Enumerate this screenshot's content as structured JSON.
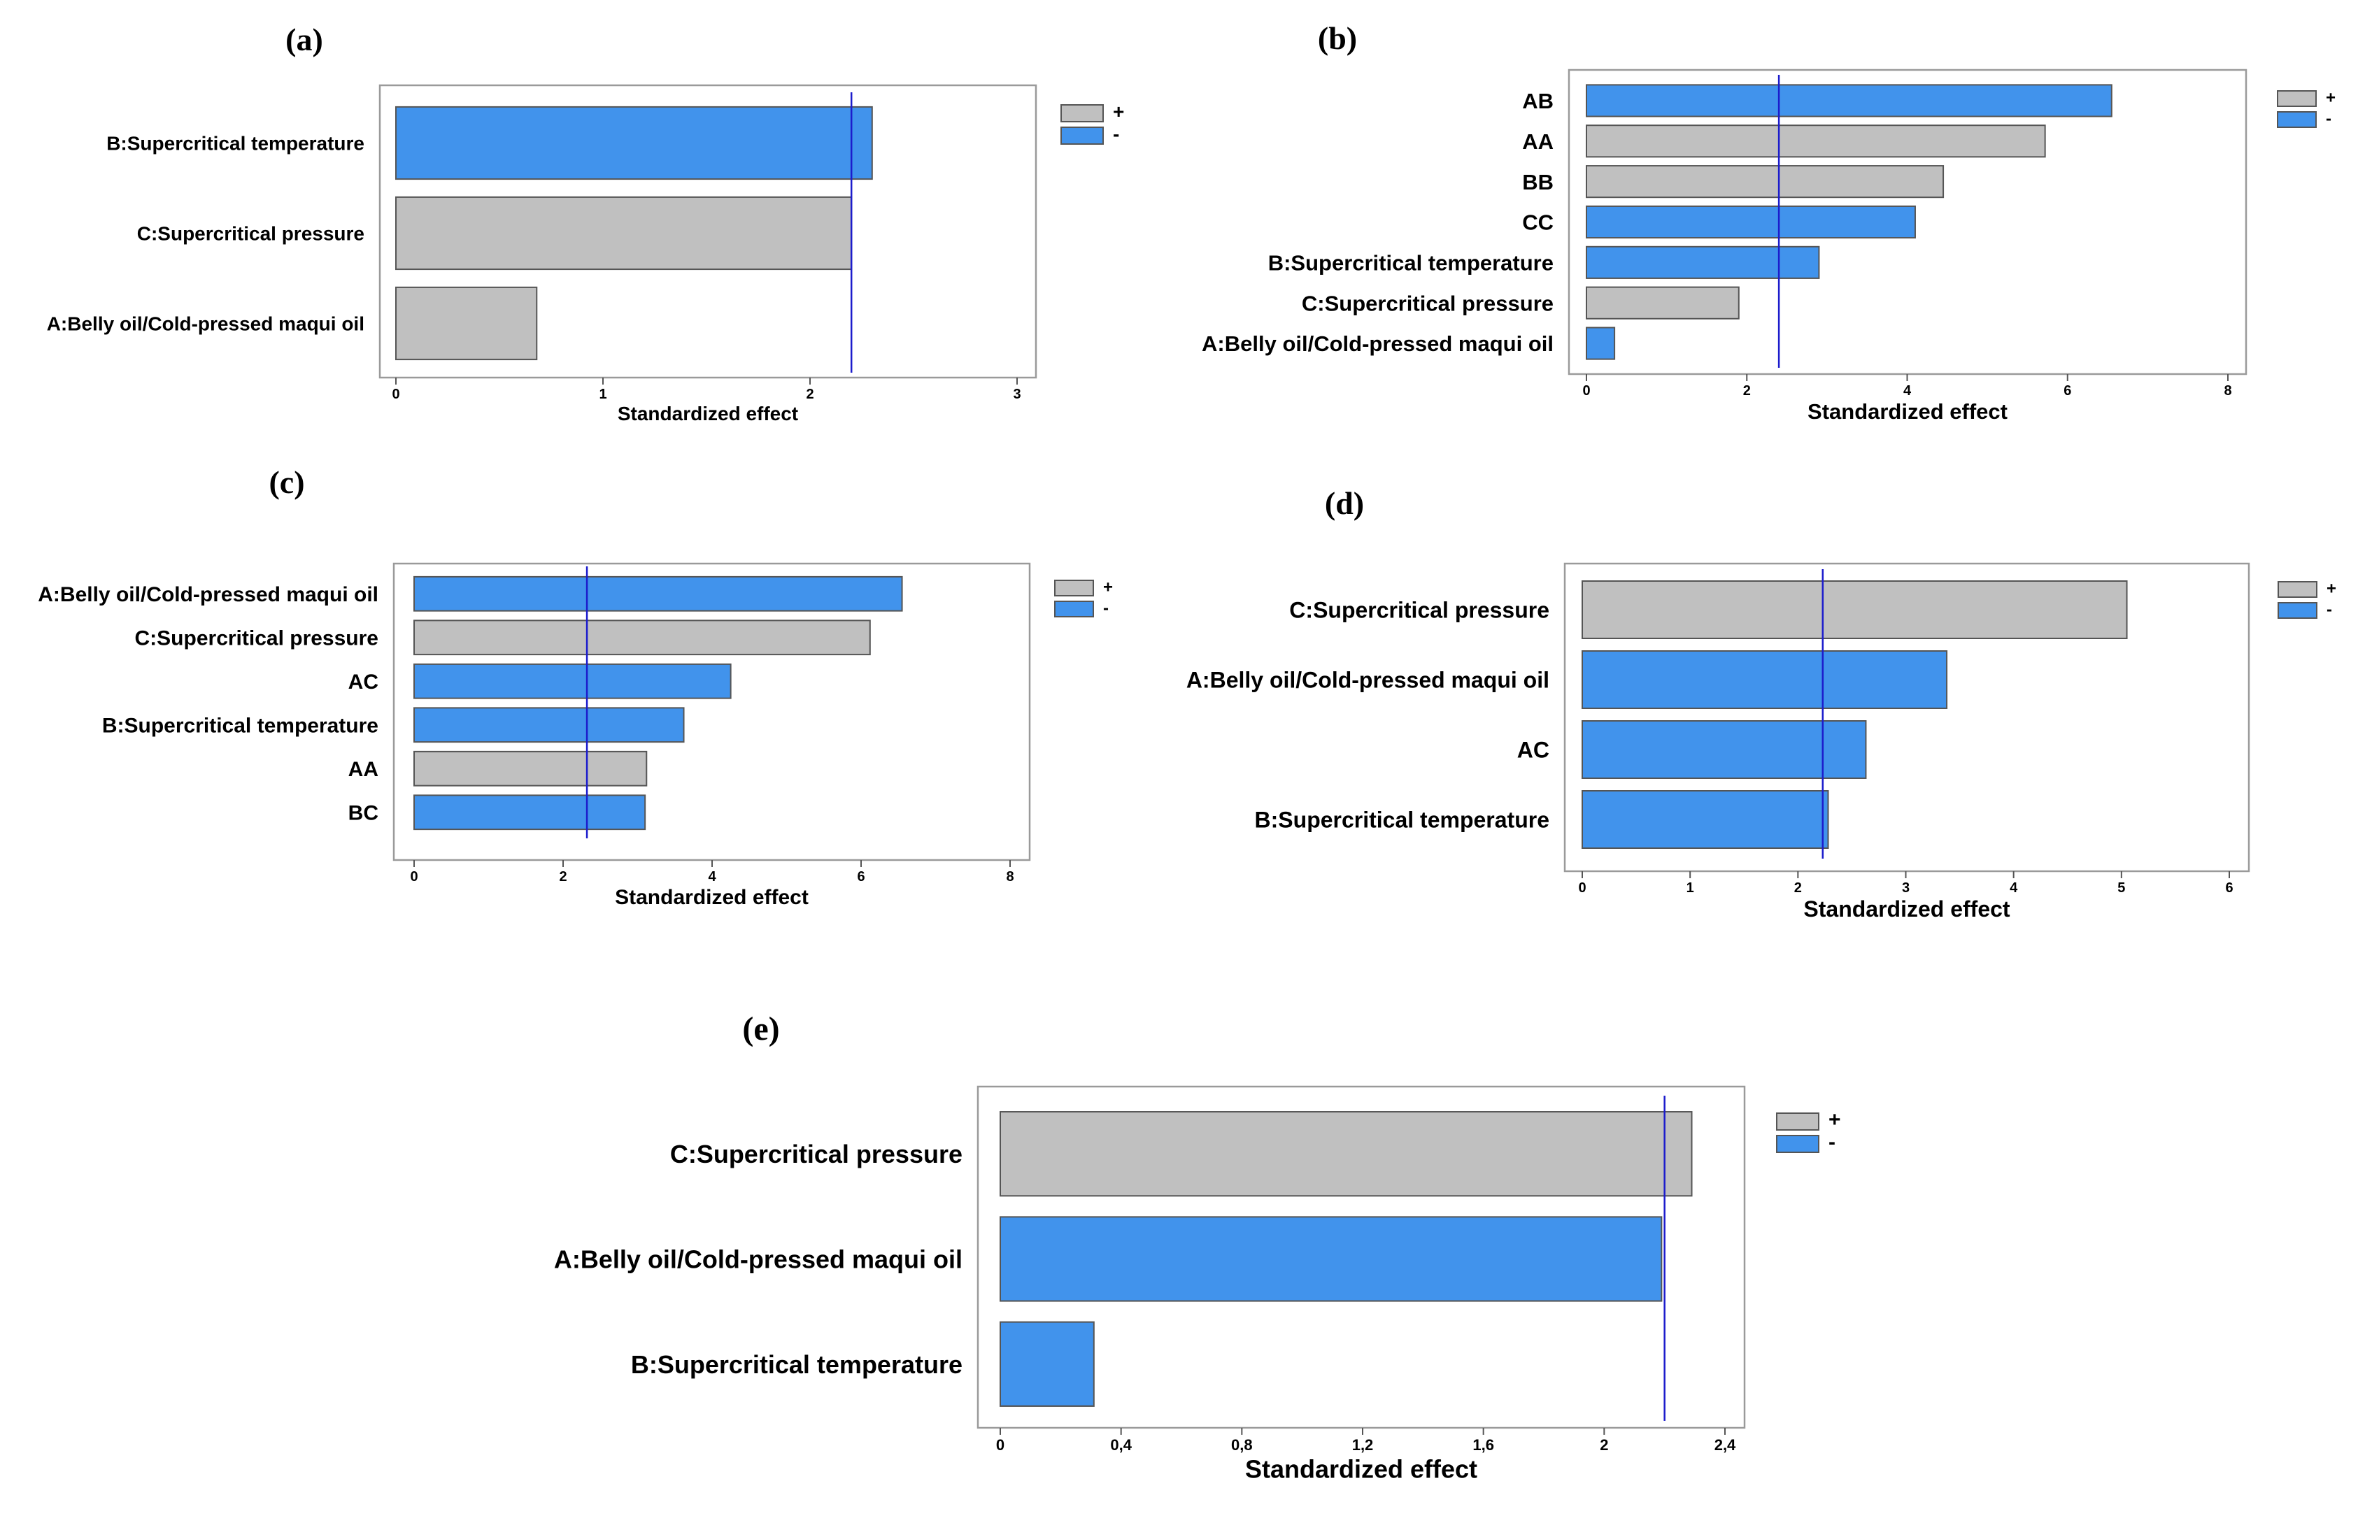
{
  "colors": {
    "positive": "#c0c0c0",
    "negative": "#4193ec",
    "reference_line": "#1c1ccc",
    "bar_stroke": "#555555",
    "frame": "#9a9a9a"
  },
  "chart_data": [
    {
      "id": "a",
      "panel_label": "(a)",
      "type": "bar",
      "orientation": "horizontal",
      "title": "",
      "xlabel": "Standardized effect",
      "ylabel": "",
      "xlim": [
        0,
        3
      ],
      "xticks": [
        "0",
        "1",
        "2",
        "3"
      ],
      "xtick_values": [
        0,
        1,
        2,
        3
      ],
      "reference_line": 2.2,
      "legend": [
        "+",
        "-"
      ],
      "bars": [
        {
          "label": "B:Supercritical temperature",
          "value": 2.3,
          "sign": "-"
        },
        {
          "label": "C:Supercritical pressure",
          "value": 2.2,
          "sign": "+"
        },
        {
          "label": "A:Belly oil/Cold-pressed maqui oil",
          "value": 0.68,
          "sign": "+"
        }
      ]
    },
    {
      "id": "b",
      "panel_label": "(b)",
      "type": "bar",
      "orientation": "horizontal",
      "title": "",
      "xlabel": "Standardized effect",
      "ylabel": "",
      "xlim": [
        0,
        8
      ],
      "xticks": [
        "0",
        "2",
        "4",
        "6",
        "8"
      ],
      "xtick_values": [
        0,
        2,
        4,
        6,
        8
      ],
      "reference_line": 2.4,
      "legend": [
        "+",
        "-"
      ],
      "bars": [
        {
          "label": "AB",
          "value": 6.55,
          "sign": "-"
        },
        {
          "label": "AA",
          "value": 5.72,
          "sign": "+"
        },
        {
          "label": "BB",
          "value": 4.45,
          "sign": "+"
        },
        {
          "label": "CC",
          "value": 4.1,
          "sign": "-"
        },
        {
          "label": "B:Supercritical temperature",
          "value": 2.9,
          "sign": "-"
        },
        {
          "label": "C:Supercritical pressure",
          "value": 1.9,
          "sign": "+"
        },
        {
          "label": "A:Belly oil/Cold-pressed maqui oil",
          "value": 0.35,
          "sign": "-"
        }
      ]
    },
    {
      "id": "c",
      "panel_label": "(c)",
      "type": "bar",
      "orientation": "horizontal",
      "title": "",
      "xlabel": "Standardized effect",
      "ylabel": "",
      "xlim": [
        0,
        8
      ],
      "xticks": [
        "0",
        "2",
        "4",
        "6",
        "8"
      ],
      "xtick_values": [
        0,
        2,
        4,
        6,
        8
      ],
      "reference_line": 2.32,
      "legend": [
        "+",
        "-"
      ],
      "bars": [
        {
          "label": "A:Belly oil/Cold-pressed maqui oil",
          "value": 6.55,
          "sign": "-"
        },
        {
          "label": "C:Supercritical pressure",
          "value": 6.12,
          "sign": "+"
        },
        {
          "label": "AC",
          "value": 4.25,
          "sign": "-"
        },
        {
          "label": "B:Supercritical temperature",
          "value": 3.62,
          "sign": "-"
        },
        {
          "label": "AA",
          "value": 3.12,
          "sign": "+"
        },
        {
          "label": "BC",
          "value": 3.1,
          "sign": "-"
        }
      ]
    },
    {
      "id": "d",
      "panel_label": "(d)",
      "type": "bar",
      "orientation": "horizontal",
      "title": "",
      "xlabel": "Standardized effect",
      "ylabel": "",
      "xlim": [
        0,
        6
      ],
      "xticks": [
        "0",
        "1",
        "2",
        "3",
        "4",
        "5",
        "6"
      ],
      "xtick_values": [
        0,
        1,
        2,
        3,
        4,
        5,
        6
      ],
      "reference_line": 2.23,
      "legend": [
        "+",
        "-"
      ],
      "bars": [
        {
          "label": "C:Supercritical pressure",
          "value": 5.05,
          "sign": "+"
        },
        {
          "label": "A:Belly oil/Cold-pressed maqui oil",
          "value": 3.38,
          "sign": "-"
        },
        {
          "label": "AC",
          "value": 2.63,
          "sign": "-"
        },
        {
          "label": "B:Supercritical temperature",
          "value": 2.28,
          "sign": "-"
        }
      ]
    },
    {
      "id": "e",
      "panel_label": "(e)",
      "type": "bar",
      "orientation": "horizontal",
      "title": "",
      "xlabel": "Standardized effect",
      "ylabel": "",
      "xlim": [
        0,
        2.4
      ],
      "xticks": [
        "0",
        "0,4",
        "0,8",
        "1,2",
        "1,6",
        "2",
        "2,4"
      ],
      "xtick_values": [
        0,
        0.4,
        0.8,
        1.2,
        1.6,
        2,
        2.4
      ],
      "reference_line": 2.2,
      "legend": [
        "+",
        "-"
      ],
      "bars": [
        {
          "label": "C:Supercritical pressure",
          "value": 2.29,
          "sign": "+"
        },
        {
          "label": "A:Belly oil/Cold-pressed maqui oil",
          "value": 2.19,
          "sign": "-"
        },
        {
          "label": "B:Supercritical temperature",
          "value": 0.31,
          "sign": "-"
        }
      ]
    }
  ]
}
